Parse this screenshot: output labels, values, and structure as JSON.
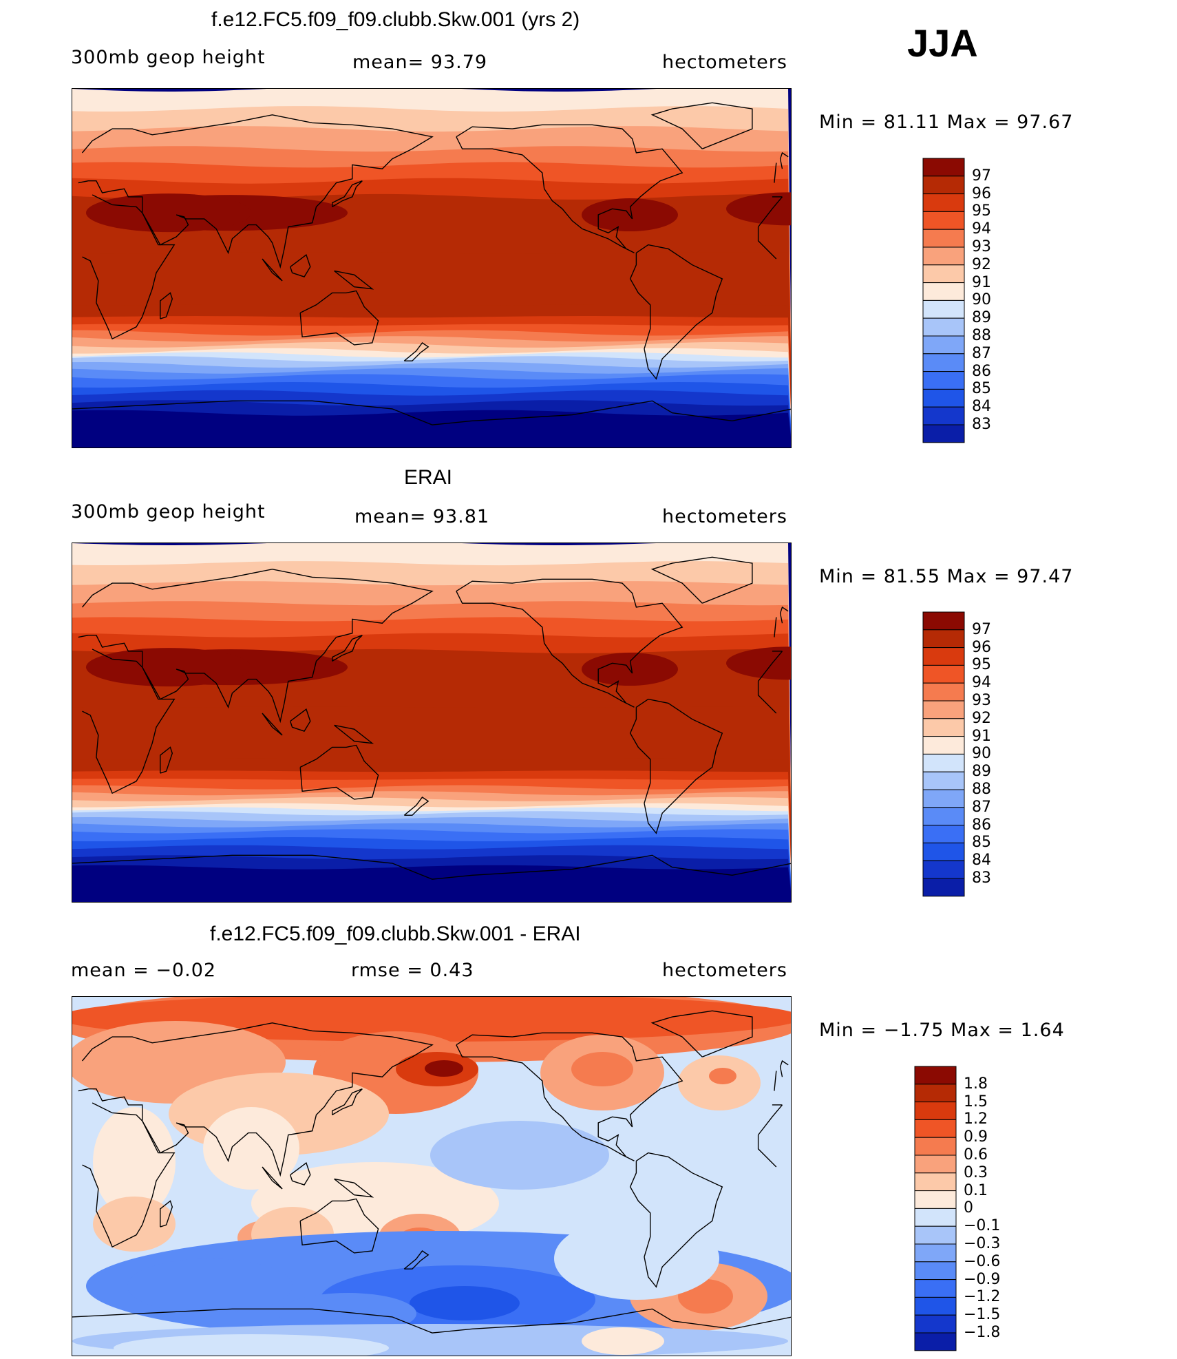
{
  "season": "JJA",
  "colors": {
    "abs": [
      "#000080",
      "#0a1ea8",
      "#1437cc",
      "#1f55e8",
      "#3a6ff5",
      "#5a8bf7",
      "#7fa7f8",
      "#a8c5f9",
      "#d2e4fb",
      "#fdeadb",
      "#fcc9a9",
      "#f9a27c",
      "#f57b4f",
      "#ef5526",
      "#d93a0e",
      "#b52a05",
      "#8b0a02"
    ],
    "diff": [
      "#000080",
      "#0a1ea8",
      "#1437cc",
      "#1f55e8",
      "#3a6ff5",
      "#5a8bf7",
      "#7fa7f8",
      "#a8c5f9",
      "#d2e4fb",
      "#fdeadb",
      "#fcc9a9",
      "#f9a27c",
      "#f57b4f",
      "#ef5526",
      "#d93a0e",
      "#b52a05",
      "#8b0a02"
    ]
  },
  "chart_data": [
    {
      "type": "heatmap",
      "title": "f.e12.FC5.f09_f09.clubb.Skw.001 (yrs 2)",
      "left_label": "300mb geop height",
      "mean_label": "mean=  93.79",
      "units": "hectometers",
      "min_max_label": "Min =  81.11 Max =  97.67",
      "min": 81.11,
      "max": 97.67,
      "mean": 93.79,
      "colorbar_levels": [
        "97",
        "96",
        "95",
        "94",
        "93",
        "92",
        "91",
        "90",
        "89",
        "88",
        "87",
        "86",
        "85",
        "84",
        "83"
      ]
    },
    {
      "type": "heatmap",
      "title": "ERAI",
      "left_label": "300mb geop height",
      "mean_label": "mean=  93.81",
      "units": "hectometers",
      "min_max_label": "Min =  81.55 Max =  97.47",
      "min": 81.55,
      "max": 97.47,
      "mean": 93.81,
      "colorbar_levels": [
        "97",
        "96",
        "95",
        "94",
        "93",
        "92",
        "91",
        "90",
        "89",
        "88",
        "87",
        "86",
        "85",
        "84",
        "83"
      ]
    },
    {
      "type": "heatmap",
      "title": "f.e12.FC5.f09_f09.clubb.Skw.001 - ERAI",
      "left_label": "mean =   −0.02",
      "mean_label": "rmse =    0.43",
      "units": "hectometers",
      "min_max_label": "Min =  −1.75 Max =    1.64",
      "min": -1.75,
      "max": 1.64,
      "mean": -0.02,
      "rmse": 0.43,
      "colorbar_levels": [
        "1.8",
        "1.5",
        "1.2",
        "0.9",
        "0.6",
        "0.3",
        "0.1",
        "0",
        "−0.1",
        "−0.3",
        "−0.6",
        "−0.9",
        "−1.2",
        "−1.5",
        "−1.8"
      ]
    }
  ]
}
